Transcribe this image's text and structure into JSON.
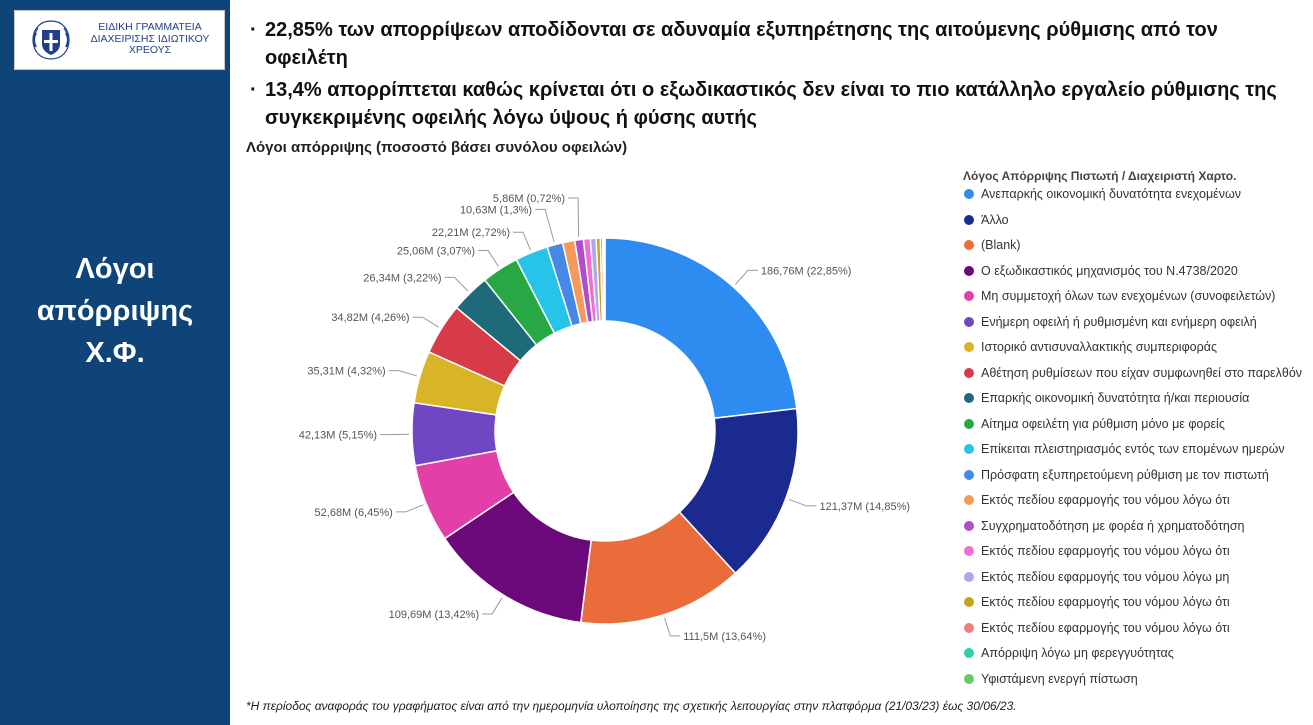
{
  "logo": {
    "lines": [
      "ΕΙΔΙΚΗ ΓΡΑΜΜΑΤΕΙΑ",
      "ΔΙΑΧΕΙΡΙΣΗΣ ΙΔΙΩΤΙΚΟΥ",
      "ΧΡΕΟΥΣ"
    ],
    "emblem": "greek-cross-emblem-icon"
  },
  "sidebar": {
    "title_lines": [
      "Λόγοι",
      "απόρριψης",
      "Χ.Φ."
    ],
    "bg_color": "#0e4478"
  },
  "bullets": [
    "22,85% των απορρίψεων αποδίδονται σε αδυναμία εξυπηρέτησης της αιτούμενης ρύθμισης από τον οφειλέτη",
    "13,4% απορρίπτεται καθώς κρίνεται ότι ο εξωδικαστικός δεν είναι το πιο κατάλληλο εργαλείο ρύθμισης της συγκεκριμένης οφειλής λόγω ύψους ή φύσης αυτής"
  ],
  "bullet_marker": "·",
  "chart_data": {
    "type": "pie",
    "variant": "donut",
    "title": "Λόγοι απόρριψης (ποσοστό βάσει συνόλου οφειλών)",
    "legend_title": "Λόγος Απόρριψης Πιστωτή / Διαχειριστή Χαρτο.",
    "legend_position": "right",
    "categories": [
      "Ανεπαρκής οικονομική δυνατότητα ενεχομένων",
      "Άλλο",
      "(Blank)",
      "Ο εξωδικαστικός μηχανισμός του Ν.4738/2020",
      "Μη συμμετοχή όλων των ενεχομένων (συνοφειλετών)",
      "Ενήμερη οφειλή ή ρυθμισμένη και ενήμερη οφειλή",
      "Ιστορικό αντισυναλλακτικής συμπεριφοράς",
      "Αθέτηση ρυθμίσεων που είχαν συμφωνηθεί στο παρελθόν",
      "Επαρκής οικονομική δυνατότητα ή/και περιουσία",
      "Αίτημα οφειλέτη για ρύθμιση μόνο με φορείς",
      "Επίκειται πλειστηριασμός εντός των επομένων ημερών",
      "Πρόσφατη εξυπηρετούμενη ρύθμιση με τον πιστωτή",
      "Εκτός πεδίου εφαρμογής του νόμου λόγω ότι",
      "Συγχρηματοδότηση με φορέα ή χρηματοδότηση",
      "Εκτός πεδίου εφαρμογής του νόμου λόγω ότι",
      "Εκτός πεδίου εφαρμογής του νόμου λόγω μη",
      "Εκτός πεδίου εφαρμογής του νόμου λόγω ότι",
      "Εκτός πεδίου εφαρμογής του νόμου λόγω ότι",
      "Απόρριψη λόγω μη φερεγγυότητας",
      "Υφιστάμενη ενεργή πίστωση"
    ],
    "values": [
      186.76,
      121.37,
      111.5,
      109.69,
      52.68,
      42.13,
      35.31,
      34.82,
      26.34,
      25.06,
      22.21,
      10.63,
      8.2,
      5.86,
      4.6,
      3.9,
      2.8,
      1.6,
      0.9,
      0.6
    ],
    "value_unit": "M",
    "data_labels": [
      "186,76M (22,85%)",
      "121,37M (14,85%)",
      "111,5M (13,64%)",
      "109,69M (13,42%)",
      "52,68M (6,45%)",
      "42,13M (5,15%)",
      "35,31M (4,32%)",
      "34,82M (4,26%)",
      "26,34M (3,22%)",
      "25,06M (3,07%)",
      "22,21M (2,72%)",
      "10,63M (1,3%)",
      "",
      "5,86M (0,72%)",
      "",
      "",
      "",
      "",
      "",
      ""
    ],
    "colors": [
      "#2e8bf0",
      "#1b2a8e",
      "#e96c3a",
      "#6b087a",
      "#e23fa8",
      "#7146c4",
      "#d9b427",
      "#d83b48",
      "#1f6a7a",
      "#27a844",
      "#25c4e8",
      "#4688e6",
      "#f59a5a",
      "#b04dc8",
      "#f06fd0",
      "#b3a4f0",
      "#c4a51e",
      "#f07c7c",
      "#2fd0a8",
      "#6ac86a"
    ]
  },
  "footnote": "*Η περίοδος αναφοράς του γραφήματος είναι από την ημερομηνία υλοποίησης της σχετικής λειτουργίας στην πλατφόρμα (21/03/23) έως 30/06/23."
}
